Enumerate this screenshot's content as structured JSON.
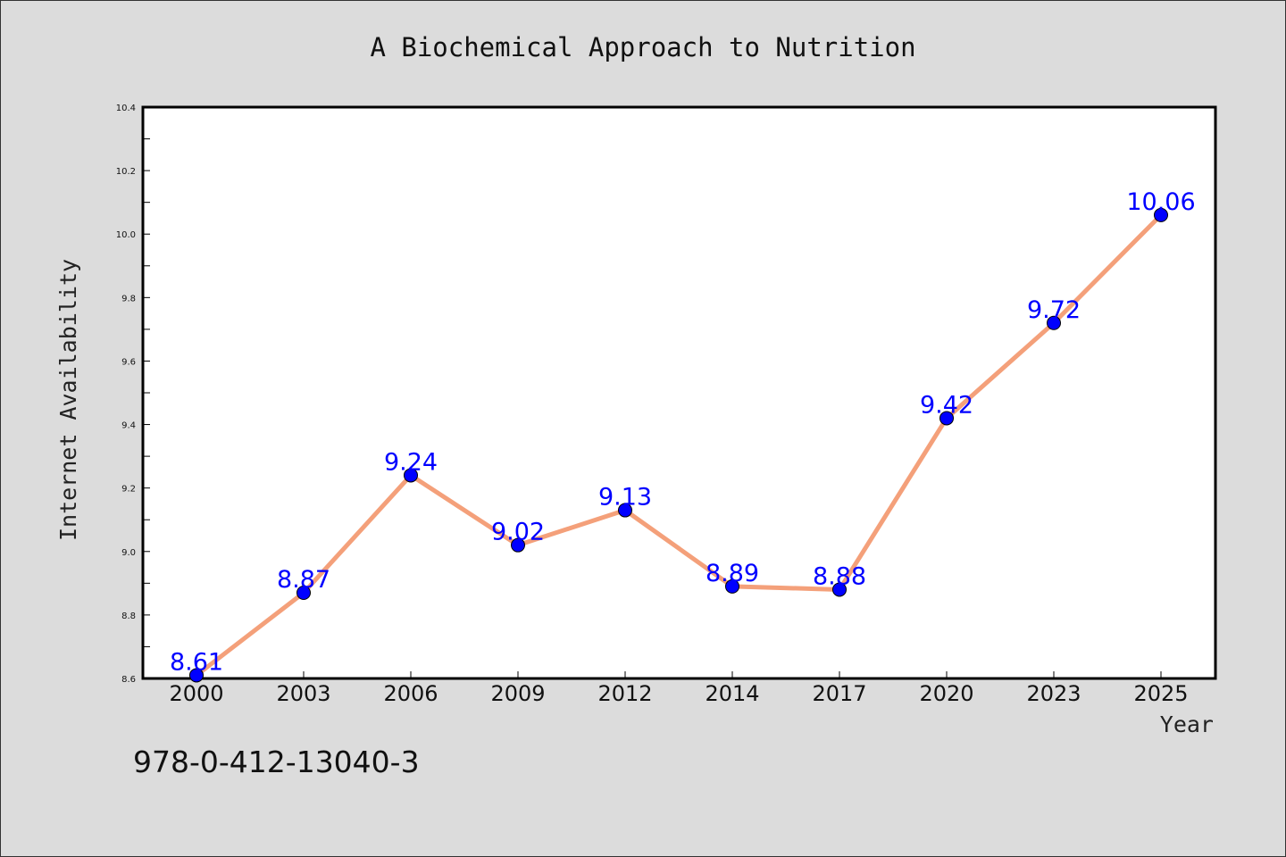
{
  "chart_data": {
    "type": "line",
    "title": "A Biochemical Approach to Nutrition",
    "xlabel": "Year",
    "ylabel": "Internet Availability",
    "categories": [
      "2000",
      "2003",
      "2006",
      "2009",
      "2012",
      "2014",
      "2017",
      "2020",
      "2023",
      "2025"
    ],
    "series": [
      {
        "values": [
          8.61,
          8.87,
          9.24,
          9.02,
          9.13,
          8.89,
          8.88,
          9.42,
          9.72,
          10.06
        ],
        "data_labels": [
          "8.61",
          "8.87",
          "9.24",
          "9.02",
          "9.13",
          "8.89",
          "8.88",
          "9.42",
          "9.72",
          "10.06"
        ]
      }
    ],
    "ylim": [
      8.6,
      10.4
    ],
    "yticks": [
      "8.6",
      "8.8",
      "9.0",
      "9.2",
      "9.4",
      "9.6",
      "9.8",
      "10.0",
      "10.2",
      "10.4"
    ],
    "grid": false,
    "line_color": "#f4a07a",
    "marker_color": "#0000ff",
    "label_color": "#0000ff"
  },
  "footer": {
    "isbn": "978-0-412-13040-3"
  }
}
